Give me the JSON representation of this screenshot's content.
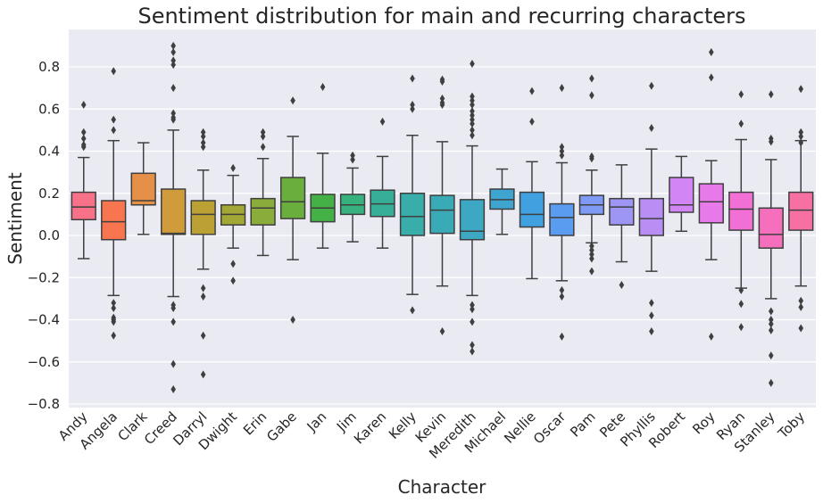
{
  "chart_data": {
    "type": "boxplot",
    "title": "Sentiment distribution for main and recurring characters",
    "xlabel": "Character",
    "ylabel": "Sentiment",
    "ylim": [
      -0.83,
      0.98
    ],
    "yticks": [
      -0.8,
      -0.6,
      -0.4,
      -0.2,
      0.0,
      0.2,
      0.4,
      0.6,
      0.8
    ],
    "ytick_labels": [
      "−0.8",
      "−0.6",
      "−0.4",
      "−0.2",
      "0.0",
      "0.2",
      "0.4",
      "0.6",
      "0.8"
    ],
    "grid": true,
    "categories": [
      "Andy",
      "Angela",
      "Clark",
      "Creed",
      "Darryl",
      "Dwight",
      "Erin",
      "Gabe",
      "Jan",
      "Jim",
      "Karen",
      "Kelly",
      "Kevin",
      "Meredith",
      "Michael",
      "Nellie",
      "Oscar",
      "Pam",
      "Pete",
      "Phyllis",
      "Robert",
      "Roy",
      "Ryan",
      "Stanley",
      "Toby"
    ],
    "boxes": [
      {
        "q1": 0.075,
        "median": 0.135,
        "q3": 0.205,
        "whislo": -0.11,
        "whishi": 0.37,
        "fliers": [
          0.62,
          0.49,
          0.46,
          0.43,
          0.42
        ],
        "color": "#f77189"
      },
      {
        "q1": -0.02,
        "median": 0.065,
        "q3": 0.165,
        "whislo": -0.285,
        "whishi": 0.45,
        "fliers": [
          0.78,
          0.55,
          0.5,
          -0.32,
          -0.345,
          -0.39,
          -0.4,
          -0.41,
          -0.475
        ],
        "color": "#f7754f"
      },
      {
        "q1": 0.145,
        "median": 0.165,
        "q3": 0.295,
        "whislo": 0.005,
        "whishi": 0.44,
        "fliers": [],
        "color": "#e59048"
      },
      {
        "q1": 0.005,
        "median": 0.01,
        "q3": 0.22,
        "whislo": -0.29,
        "whishi": 0.5,
        "fliers": [
          0.9,
          0.87,
          0.83,
          0.81,
          0.7,
          0.58,
          0.56,
          0.55,
          -0.33,
          -0.345,
          -0.41,
          -0.61,
          -0.73
        ],
        "color": "#d09b3a"
      },
      {
        "q1": 0.005,
        "median": 0.1,
        "q3": 0.165,
        "whislo": -0.16,
        "whishi": 0.31,
        "fliers": [
          0.49,
          0.47,
          0.44,
          0.42,
          -0.25,
          -0.29,
          -0.475,
          -0.66
        ],
        "color": "#bba133"
      },
      {
        "q1": 0.05,
        "median": 0.1,
        "q3": 0.145,
        "whislo": -0.06,
        "whishi": 0.285,
        "fliers": [
          0.32,
          -0.135,
          -0.215
        ],
        "color": "#a3a736"
      },
      {
        "q1": 0.05,
        "median": 0.13,
        "q3": 0.175,
        "whislo": -0.095,
        "whishi": 0.365,
        "fliers": [
          0.49,
          0.47,
          0.42
        ],
        "color": "#89ac3b"
      },
      {
        "q1": 0.08,
        "median": 0.16,
        "q3": 0.275,
        "whislo": -0.115,
        "whishi": 0.47,
        "fliers": [
          0.64,
          -0.4
        ],
        "color": "#6aae3e"
      },
      {
        "q1": 0.065,
        "median": 0.13,
        "q3": 0.195,
        "whislo": -0.06,
        "whishi": 0.39,
        "fliers": [
          0.705
        ],
        "color": "#43b146"
      },
      {
        "q1": 0.1,
        "median": 0.145,
        "q3": 0.195,
        "whislo": -0.03,
        "whishi": 0.32,
        "fliers": [
          0.38,
          0.36
        ],
        "color": "#37b27f"
      },
      {
        "q1": 0.09,
        "median": 0.15,
        "q3": 0.215,
        "whislo": -0.06,
        "whishi": 0.375,
        "fliers": [
          0.54
        ],
        "color": "#37af98"
      },
      {
        "q1": 0.0,
        "median": 0.09,
        "q3": 0.2,
        "whislo": -0.28,
        "whishi": 0.475,
        "fliers": [
          0.745,
          0.62,
          0.6,
          -0.355
        ],
        "color": "#39ada9"
      },
      {
        "q1": 0.01,
        "median": 0.12,
        "q3": 0.19,
        "whislo": -0.24,
        "whishi": 0.445,
        "fliers": [
          0.74,
          0.73,
          0.65,
          0.63,
          0.62,
          -0.455
        ],
        "color": "#3aaab7"
      },
      {
        "q1": -0.02,
        "median": 0.02,
        "q3": 0.17,
        "whislo": -0.285,
        "whishi": 0.425,
        "fliers": [
          0.815,
          0.66,
          0.64,
          0.62,
          0.59,
          0.57,
          0.55,
          0.53,
          0.5,
          0.475,
          -0.33,
          -0.35,
          -0.41,
          -0.52,
          -0.55
        ],
        "color": "#3ca8c3"
      },
      {
        "q1": 0.125,
        "median": 0.17,
        "q3": 0.22,
        "whislo": 0.005,
        "whishi": 0.315,
        "fliers": [],
        "color": "#3ea4d0"
      },
      {
        "q1": 0.04,
        "median": 0.1,
        "q3": 0.205,
        "whislo": -0.205,
        "whishi": 0.35,
        "fliers": [
          0.685,
          0.54
        ],
        "color": "#41a0e0"
      },
      {
        "q1": 0.0,
        "median": 0.085,
        "q3": 0.15,
        "whislo": -0.215,
        "whishi": 0.345,
        "fliers": [
          0.7,
          0.42,
          0.4,
          0.38,
          -0.26,
          -0.29,
          -0.48
        ],
        "color": "#5a9cef"
      },
      {
        "q1": 0.1,
        "median": 0.145,
        "q3": 0.19,
        "whislo": -0.035,
        "whishi": 0.31,
        "fliers": [
          0.745,
          0.665,
          0.375,
          0.365,
          -0.05,
          -0.07,
          -0.09,
          -0.11,
          -0.17
        ],
        "color": "#7e9af4"
      },
      {
        "q1": 0.05,
        "median": 0.135,
        "q3": 0.175,
        "whislo": -0.125,
        "whishi": 0.335,
        "fliers": [
          -0.235
        ],
        "color": "#9d96f4"
      },
      {
        "q1": 0.0,
        "median": 0.08,
        "q3": 0.175,
        "whislo": -0.17,
        "whishi": 0.41,
        "fliers": [
          0.71,
          0.51,
          -0.32,
          -0.38,
          -0.455
        ],
        "color": "#b98ef4"
      },
      {
        "q1": 0.11,
        "median": 0.145,
        "q3": 0.275,
        "whislo": 0.02,
        "whishi": 0.375,
        "fliers": [],
        "color": "#d285f4"
      },
      {
        "q1": 0.06,
        "median": 0.16,
        "q3": 0.245,
        "whislo": -0.115,
        "whishi": 0.355,
        "fliers": [
          0.87,
          0.75,
          -0.48
        ],
        "color": "#e879ea"
      },
      {
        "q1": 0.025,
        "median": 0.125,
        "q3": 0.205,
        "whislo": -0.25,
        "whishi": 0.455,
        "fliers": [
          0.67,
          0.53,
          -0.26,
          -0.325,
          -0.435
        ],
        "color": "#f26fd6"
      },
      {
        "q1": -0.06,
        "median": 0.005,
        "q3": 0.13,
        "whislo": -0.3,
        "whishi": 0.36,
        "fliers": [
          0.67,
          0.46,
          0.445,
          -0.36,
          -0.4,
          -0.42,
          -0.45,
          -0.57,
          -0.7
        ],
        "color": "#f56fbc"
      },
      {
        "q1": 0.025,
        "median": 0.12,
        "q3": 0.205,
        "whislo": -0.24,
        "whishi": 0.45,
        "fliers": [
          0.695,
          0.49,
          0.47,
          0.44,
          -0.31,
          -0.34,
          -0.44
        ],
        "color": "#f670a4"
      }
    ]
  }
}
